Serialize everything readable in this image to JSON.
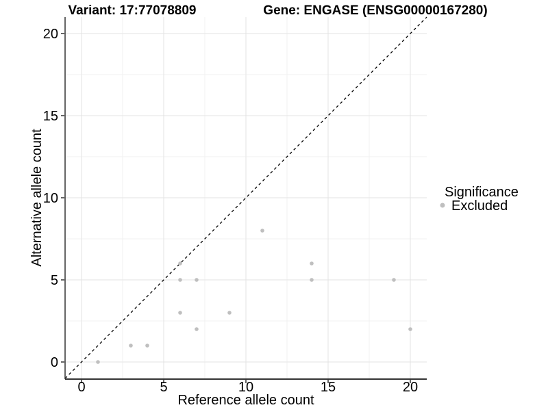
{
  "chart_data": {
    "type": "scatter",
    "title_left": "Variant: 17:77078809",
    "title_right": "Gene: ENGASE (ENSG00000167280)",
    "xlabel": "Reference allele count",
    "ylabel": "Alternative allele count",
    "xlim": [
      -1,
      21
    ],
    "ylim": [
      -1,
      21
    ],
    "x_ticks": [
      0,
      5,
      10,
      15,
      20
    ],
    "y_ticks": [
      0,
      5,
      10,
      15,
      20
    ],
    "x_minor_gridlines": [
      2.5,
      7.5,
      12.5,
      17.5
    ],
    "y_minor_gridlines": [
      2.5,
      7.5,
      12.5,
      17.5
    ],
    "grid": true,
    "identity_line": {
      "style": "dashed",
      "from": [
        -1,
        -1
      ],
      "to": [
        21,
        21
      ],
      "color": "#000000"
    },
    "legend": {
      "title": "Significance",
      "position": "right",
      "items": [
        {
          "label": "Excluded",
          "color": "#BFBFBF"
        }
      ]
    },
    "series": [
      {
        "name": "Excluded",
        "color": "#BFBFBF",
        "points": [
          [
            1,
            0
          ],
          [
            3,
            1
          ],
          [
            4,
            1
          ],
          [
            6,
            3
          ],
          [
            6,
            5
          ],
          [
            6,
            6
          ],
          [
            7,
            2
          ],
          [
            7,
            5
          ],
          [
            9,
            3
          ],
          [
            11,
            8
          ],
          [
            14,
            5
          ],
          [
            14,
            6
          ],
          [
            19,
            5
          ],
          [
            20,
            2
          ]
        ]
      }
    ]
  },
  "colors": {
    "point": "#BFBFBF",
    "grid_major": "#E3E3E3",
    "grid_minor": "#F1F1F1",
    "axis_line": "#333333",
    "diagonal": "#000000",
    "text": "#000000"
  }
}
